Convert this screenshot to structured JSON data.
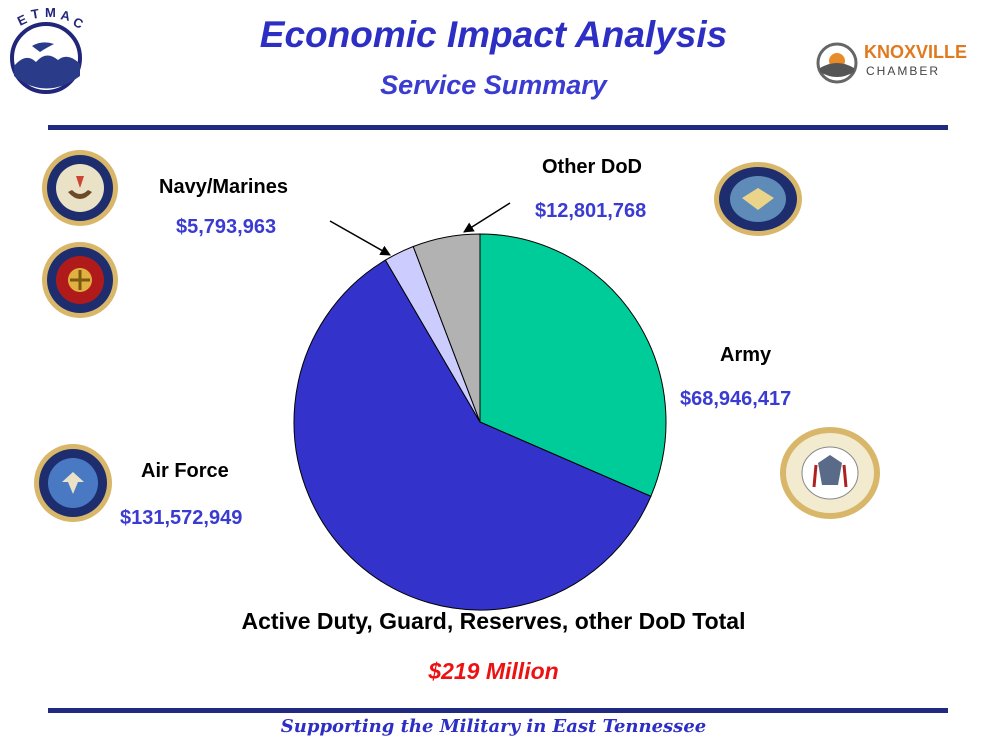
{
  "header": {
    "title": "Economic Impact Analysis",
    "subtitle": "Service Summary",
    "left_logo_text": "ETMAC",
    "right_logo_line1": "KNOXVILLE",
    "right_logo_line2": "CHAMBER"
  },
  "chart_data": {
    "type": "pie",
    "slices": [
      {
        "label": "Army",
        "value": 68946417,
        "value_label": "$68,946,417",
        "color": "#00cc99"
      },
      {
        "label": "Air Force",
        "value": 131572949,
        "value_label": "$131,572,949",
        "color": "#3333cc"
      },
      {
        "label": "Navy/Marines",
        "value": 5793963,
        "value_label": "$5,793,963",
        "color": "#ccccff"
      },
      {
        "label": "Other DoD",
        "value": 12801768,
        "value_label": "$12,801,768",
        "color": "#b2b2b2"
      }
    ],
    "total_label": "Active Duty, Guard, Reserves, other DoD Total",
    "total_value": "$219 Million"
  },
  "footer": {
    "tagline": "Supporting the Military in East Tennessee"
  },
  "seals": {
    "navy": "navy-seal-icon",
    "marines": "marines-seal-icon",
    "dod": "dod-seal-icon",
    "air_force": "air-force-seal-icon",
    "army": "army-seal-icon"
  }
}
